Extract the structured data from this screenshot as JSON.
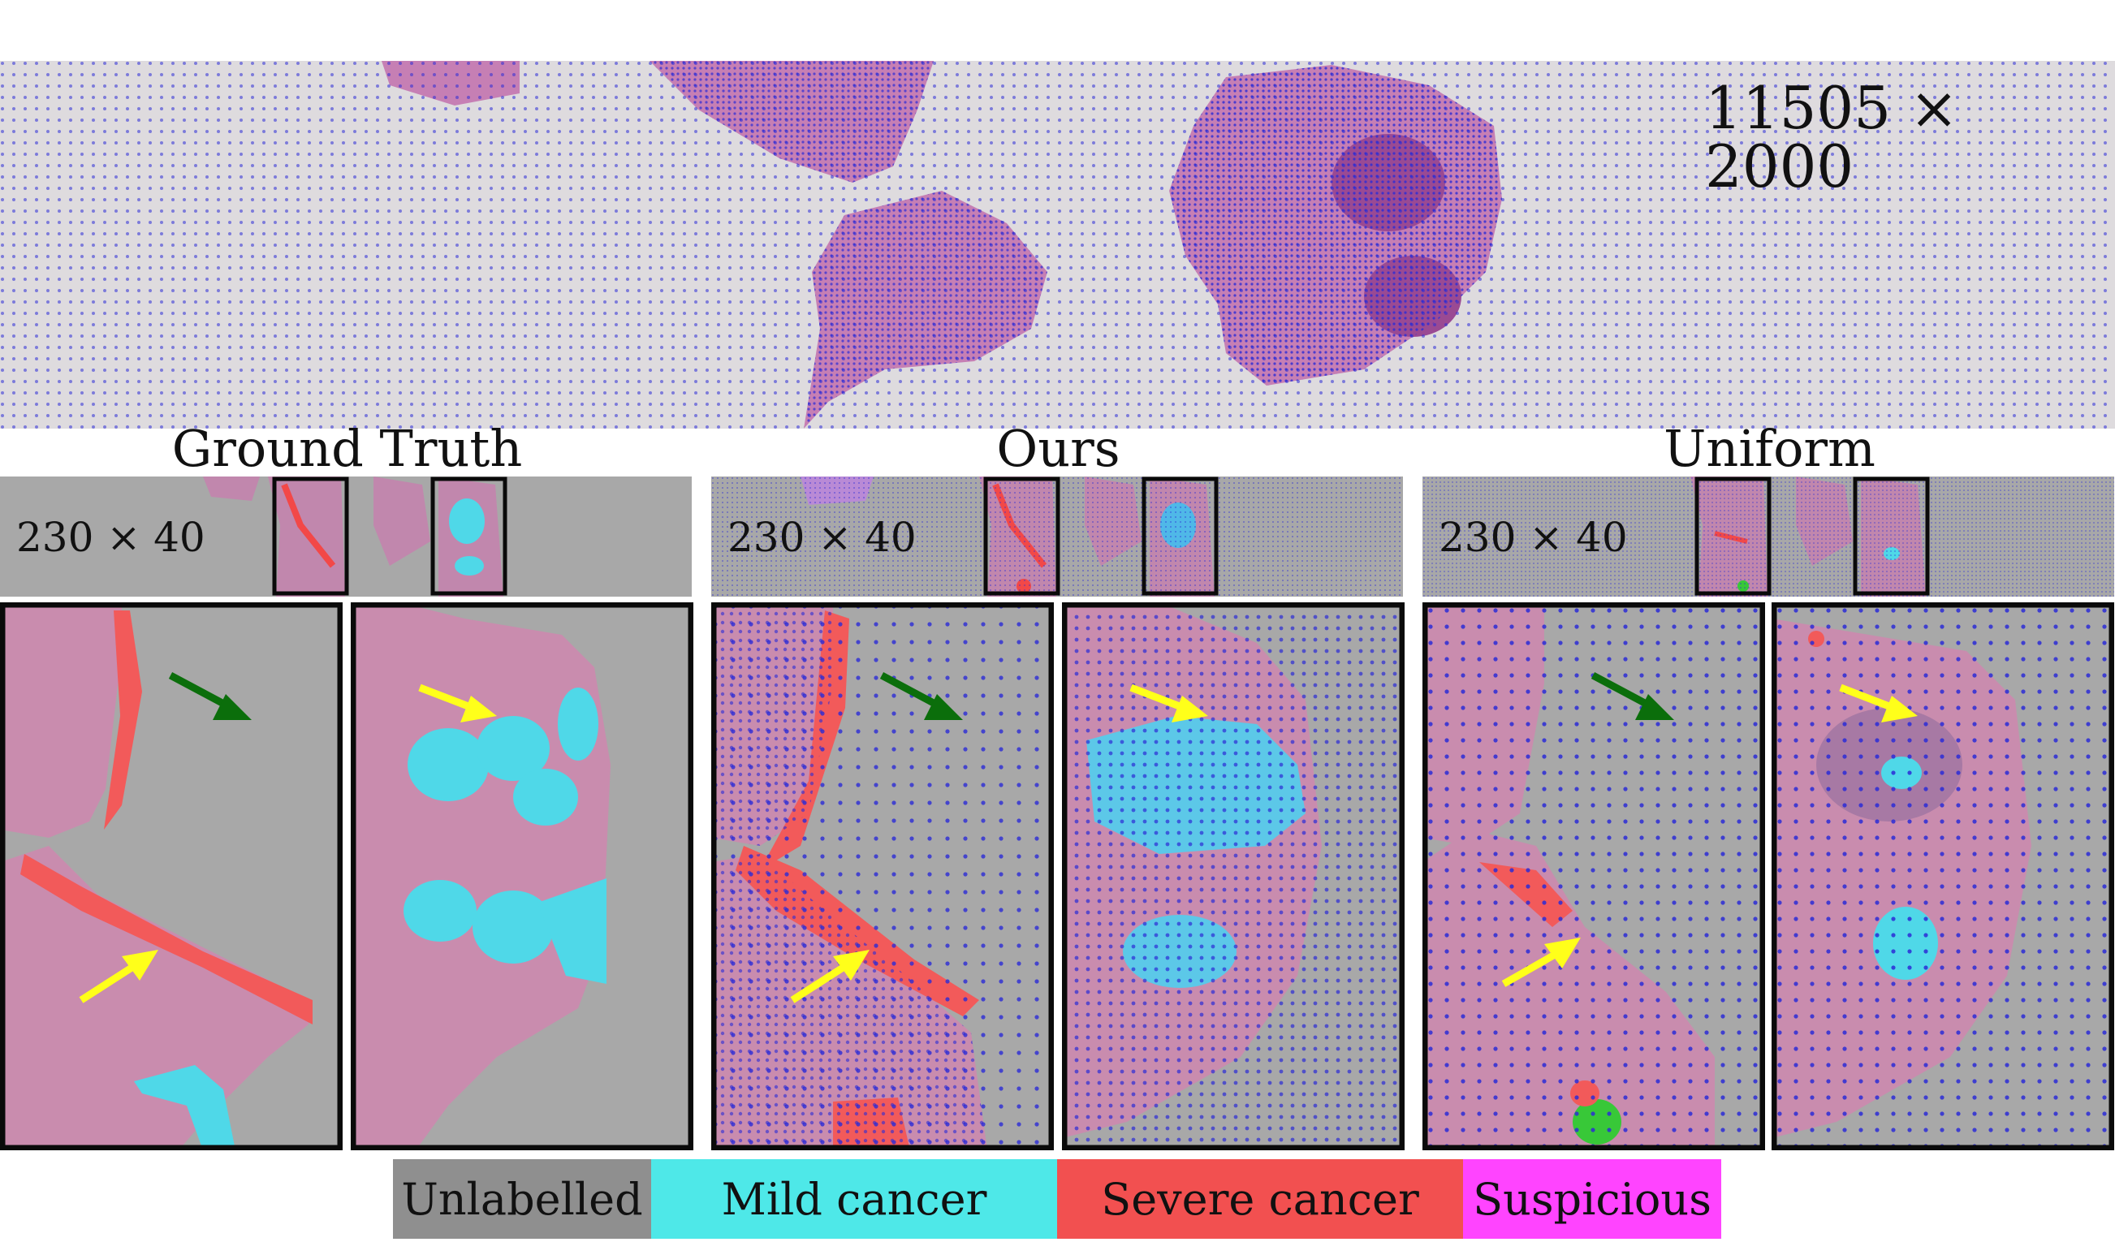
{
  "overview": {
    "resolution_label": "11505 × 2000"
  },
  "panels": [
    {
      "title": "Ground Truth",
      "resolution_label": "230 × 40"
    },
    {
      "title": "Ours",
      "resolution_label": "230 × 40"
    },
    {
      "title": "Uniform",
      "resolution_label": "230 × 40"
    }
  ],
  "legend": [
    {
      "label": "Unlabelled",
      "color": "#8f8f8f"
    },
    {
      "label": "Mild cancer",
      "color": "#4ee8e8"
    },
    {
      "label": "Severe cancer",
      "color": "#f25050"
    },
    {
      "label": "Suspicious",
      "color": "#ff44ff"
    }
  ],
  "colors": {
    "tissue": "#c67fb4",
    "tissue_dark": "#a04c98",
    "background_slide": "#dcdadd",
    "sample_dot": "#2b2bd6",
    "arrow_yellow": "#ffff1a",
    "arrow_green": "#0b6e0b",
    "frame": "#0a0a0a"
  }
}
